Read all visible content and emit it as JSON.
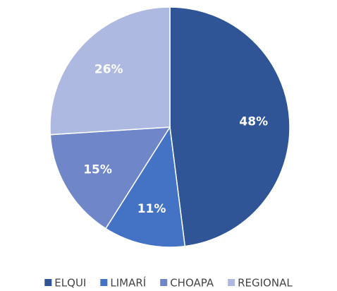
{
  "chart_data": {
    "type": "pie",
    "categories": [
      "ELQUI",
      "LIMARÍ",
      "CHOAPA",
      "REGIONAL"
    ],
    "values": [
      48,
      11,
      15,
      26
    ],
    "value_labels": [
      "48%",
      "11%",
      "15%",
      "26%"
    ],
    "colors": [
      "#2f5597",
      "#4472c4",
      "#6f86c8",
      "#adb9e0"
    ],
    "legend": "bottom"
  }
}
